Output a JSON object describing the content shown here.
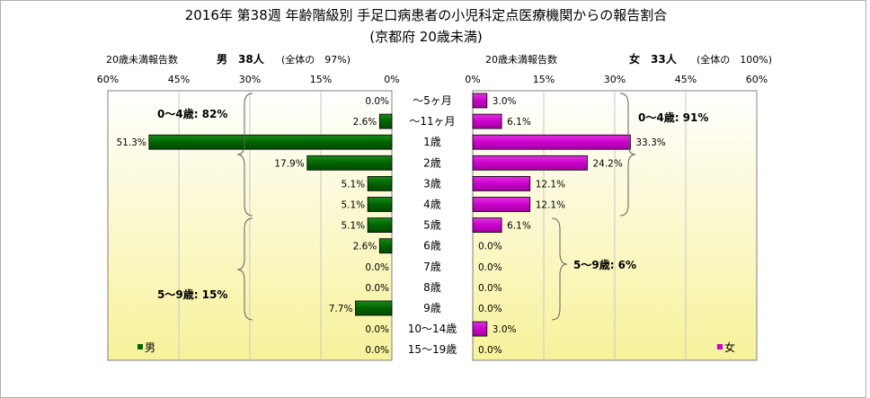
{
  "chart_data": {
    "type": "bar",
    "title": "2016年 第38週 年齢階級別 手足口病患者の小児科定点医療機関からの報告割合",
    "subtitle": "(京都府 20歳未満)",
    "categories": [
      "〜5ヶ月",
      "〜11ヶ月",
      "1歳",
      "2歳",
      "3歳",
      "4歳",
      "5歳",
      "6歳",
      "7歳",
      "8歳",
      "9歳",
      "10〜14歳",
      "15〜19歳"
    ],
    "axis_ticks": [
      "60%",
      "45%",
      "30%",
      "15%",
      "0%"
    ],
    "axis_ticks_right": [
      "0%",
      "15%",
      "30%",
      "45%",
      "60%"
    ],
    "xlim": [
      0,
      60
    ],
    "series": [
      {
        "name": "男",
        "side": "left",
        "color": "#006400",
        "header_left": "20歳未満報告数",
        "header_main": "男　38人",
        "header_note": "(全体の　97%)",
        "values": [
          0.0,
          2.6,
          51.3,
          17.9,
          5.1,
          5.1,
          5.1,
          2.6,
          0.0,
          0.0,
          7.7,
          0.0,
          0.0
        ],
        "labels": [
          "0.0%",
          "2.6%",
          "51.3%",
          "17.9%",
          "5.1%",
          "5.1%",
          "5.1%",
          "2.6%",
          "0.0%",
          "0.0%",
          "7.7%",
          "0.0%",
          "0.0%"
        ]
      },
      {
        "name": "女",
        "side": "right",
        "color": "#cc00cc",
        "header_left": "20歳未満報告数",
        "header_main": "女　33人",
        "header_note": "(全体の　100%)",
        "values": [
          3.0,
          6.1,
          33.3,
          24.2,
          12.1,
          12.1,
          6.1,
          0.0,
          0.0,
          0.0,
          0.0,
          3.0,
          0.0
        ],
        "labels": [
          "3.0%",
          "6.1%",
          "33.3%",
          "24.2%",
          "12.1%",
          "12.1%",
          "6.1%",
          "0.0%",
          "0.0%",
          "0.0%",
          "0.0%",
          "3.0%",
          "0.0%"
        ]
      }
    ],
    "annotations": {
      "male_0_4": "0〜4歳: 82%",
      "male_5_9": "5〜9歳: 15%",
      "female_0_4": "0〜4歳: 91%",
      "female_5_9": "5〜9歳: 6%"
    },
    "legend": {
      "male": "男",
      "female": "女",
      "placement": "bottom"
    },
    "colors": {
      "male": "#006400",
      "female": "#cc00cc",
      "panel_top": "#ffffff",
      "panel_bottom": "#f7f29a"
    }
  }
}
